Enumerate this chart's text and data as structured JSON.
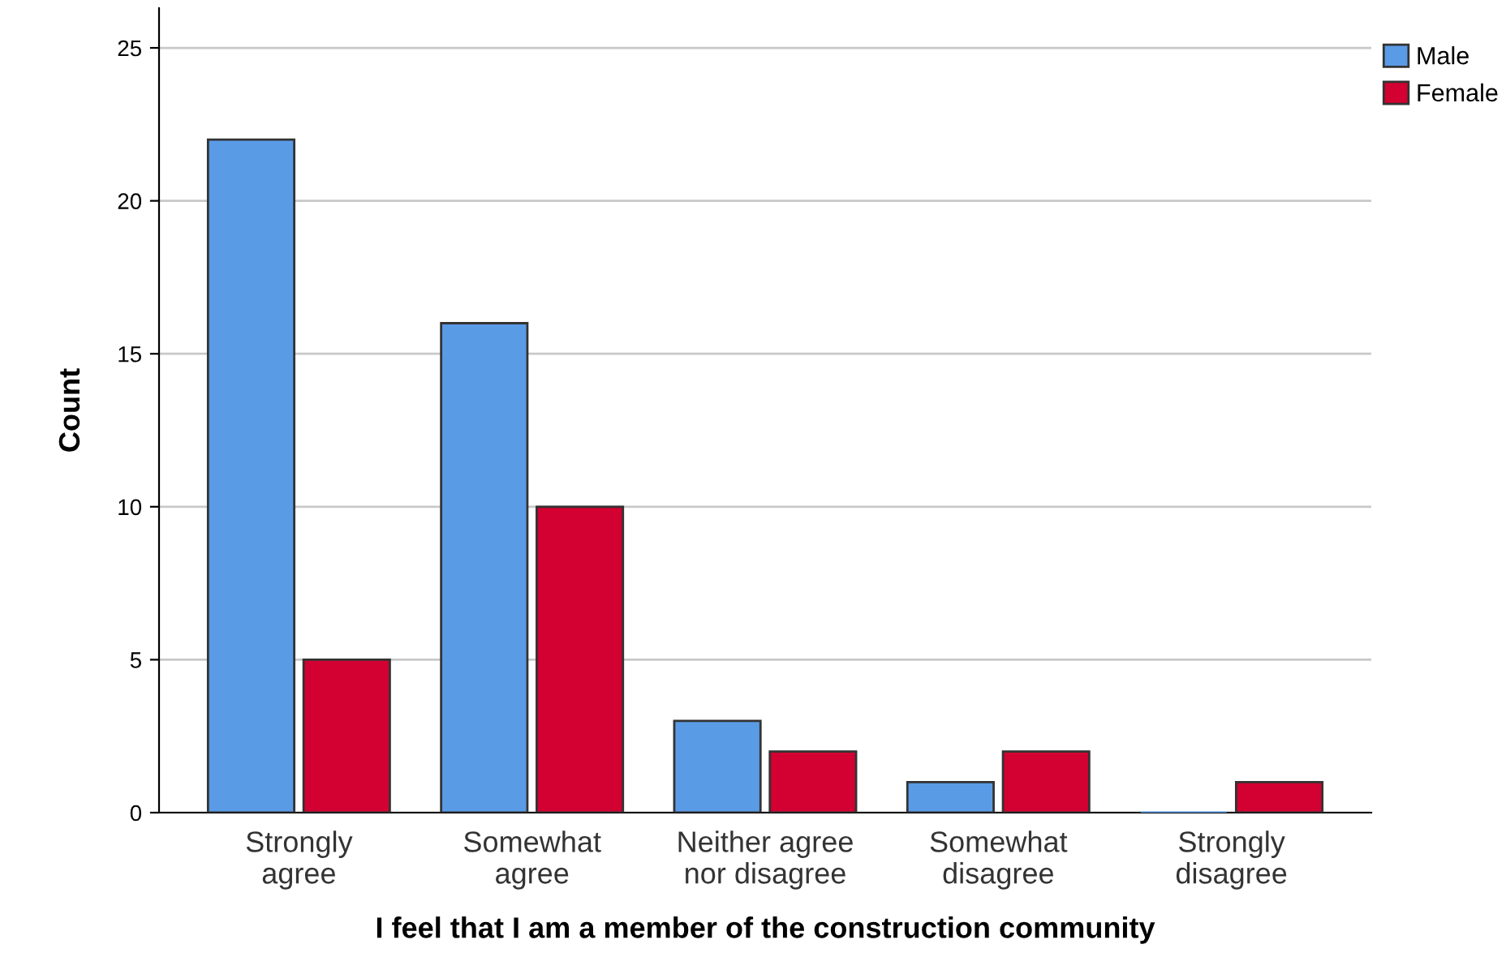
{
  "chart_data": {
    "type": "bar",
    "xlabel": "I feel that I am a member of the construction community",
    "ylabel": "Count",
    "categories": [
      "Strongly\nagree",
      "Somewhat\nagree",
      "Neither agree\nnor disagree",
      "Somewhat\ndisagree",
      "Strongly\ndisagree"
    ],
    "series": [
      {
        "name": "Male",
        "color": "#5a9be6",
        "values": [
          22,
          16,
          3,
          1,
          0
        ]
      },
      {
        "name": "Female",
        "color": "#d20131",
        "values": [
          5,
          10,
          2,
          2,
          1
        ]
      }
    ],
    "ylim": [
      0,
      26.3
    ],
    "yticks": [
      0,
      5,
      10,
      15,
      20,
      25
    ],
    "grid": "y",
    "legend": "top right"
  }
}
